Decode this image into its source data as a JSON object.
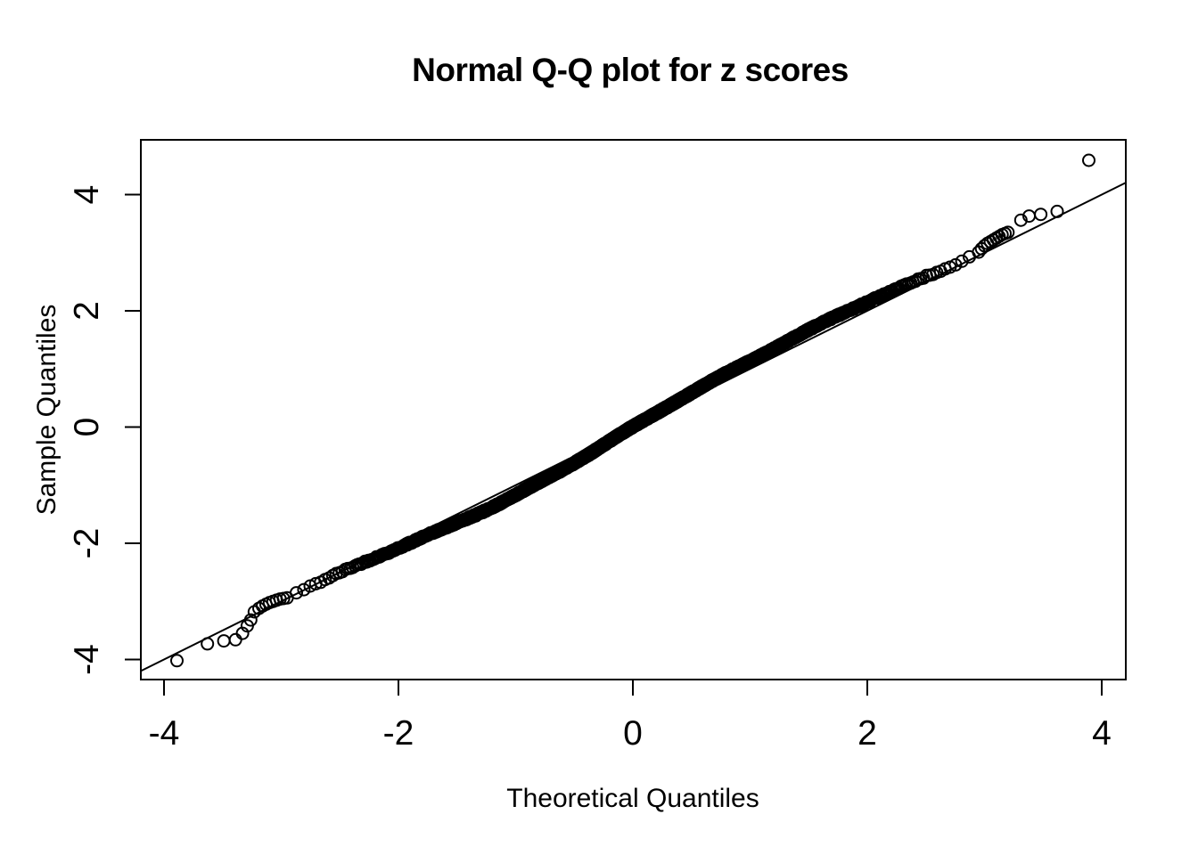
{
  "chart_data": {
    "type": "scatter",
    "subtype": "normal-qq-plot",
    "title": "Normal Q-Q plot for z scores",
    "xlabel": "Theoretical Quantiles",
    "ylabel": "Sample Quantiles",
    "x_ticks": [
      -4,
      -2,
      0,
      2,
      4
    ],
    "y_ticks": [
      -4,
      -2,
      0,
      2,
      4
    ],
    "x_tick_labels": [
      "-4",
      "-2",
      "0",
      "2",
      "4"
    ],
    "y_tick_labels": [
      "-4",
      "-2",
      "0",
      "2",
      "4"
    ],
    "xlim": [
      -4.2,
      4.2
    ],
    "ylim": [
      -4.35,
      4.95
    ],
    "grid": false,
    "legend": null,
    "marker": "open-circle",
    "colors": {
      "points": "#000000",
      "line": "#000000",
      "background": "#ffffff"
    },
    "reference_line": {
      "slope": 1,
      "intercept": 0
    },
    "series": [
      {
        "name": "dense-quantile-band",
        "render": "dense-band",
        "n_points": 2200,
        "x_range": [
          -2.93,
          2.93
        ],
        "x_distribution": "normal-quantiles",
        "y_jitter": 0.03,
        "deviation_curve": [
          [
            -2.93,
            0.04
          ],
          [
            -2.7,
            0.02
          ],
          [
            -2.5,
            0.0
          ],
          [
            -2.2,
            -0.05
          ],
          [
            -1.9,
            -0.1
          ],
          [
            -1.6,
            -0.15
          ],
          [
            -1.35,
            -0.17
          ],
          [
            -1.1,
            -0.17
          ],
          [
            -0.85,
            -0.15
          ],
          [
            -0.6,
            -0.12
          ],
          [
            -0.35,
            -0.08
          ],
          [
            -0.1,
            -0.03
          ],
          [
            0.15,
            0.02
          ],
          [
            0.4,
            0.07
          ],
          [
            0.65,
            0.11
          ],
          [
            0.9,
            0.14
          ],
          [
            1.15,
            0.16
          ],
          [
            1.4,
            0.17
          ],
          [
            1.7,
            0.17
          ],
          [
            1.95,
            0.15
          ],
          [
            2.2,
            0.12
          ],
          [
            2.45,
            0.09
          ],
          [
            2.7,
            0.07
          ],
          [
            2.93,
            0.06
          ]
        ]
      },
      {
        "name": "left-tail",
        "render": "points",
        "points": [
          [
            -3.89,
            -4.02
          ],
          [
            -3.63,
            -3.73
          ],
          [
            -3.49,
            -3.68
          ],
          [
            -3.39,
            -3.66
          ],
          [
            -3.33,
            -3.55
          ],
          [
            -3.29,
            -3.42
          ],
          [
            -3.26,
            -3.32
          ],
          [
            -3.23,
            -3.18
          ],
          [
            -3.19,
            -3.12
          ],
          [
            -3.16,
            -3.08
          ],
          [
            -3.13,
            -3.05
          ],
          [
            -3.1,
            -3.02
          ],
          [
            -3.07,
            -3.0
          ],
          [
            -3.04,
            -2.98
          ],
          [
            -3.01,
            -2.96
          ],
          [
            -2.98,
            -2.95
          ],
          [
            -2.95,
            -2.94
          ]
        ]
      },
      {
        "name": "right-tail",
        "render": "points",
        "points": [
          [
            2.95,
            3.01
          ],
          [
            2.975,
            3.07
          ],
          [
            3.0,
            3.12
          ],
          [
            3.025,
            3.16
          ],
          [
            3.05,
            3.19
          ],
          [
            3.075,
            3.22
          ],
          [
            3.1,
            3.25
          ],
          [
            3.125,
            3.28
          ],
          [
            3.15,
            3.31
          ],
          [
            3.175,
            3.33
          ],
          [
            3.2,
            3.35
          ],
          [
            3.31,
            3.56
          ],
          [
            3.38,
            3.63
          ],
          [
            3.48,
            3.66
          ],
          [
            3.62,
            3.71
          ],
          [
            3.89,
            4.59
          ]
        ]
      }
    ]
  }
}
